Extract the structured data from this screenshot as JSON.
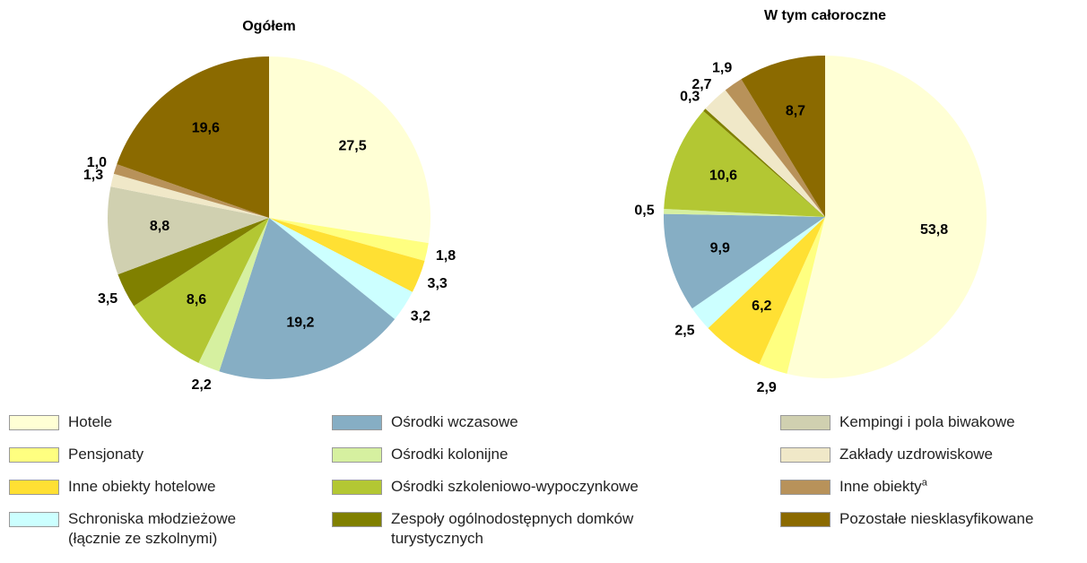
{
  "chart_data": [
    {
      "type": "pie",
      "title": "Ogółem",
      "values": [
        27.5,
        1.8,
        3.3,
        3.2,
        19.2,
        2.2,
        8.6,
        3.5,
        8.8,
        1.3,
        1.0,
        19.6
      ],
      "value_labels": [
        "27,5",
        "1,8",
        "3,3",
        "3,2",
        "19,2",
        "2,2",
        "8,6",
        "3,5",
        "8,8",
        "1,3",
        "1,0",
        "19,6"
      ],
      "colors": [
        "#ffffd5",
        "#ffff80",
        "#ffe033",
        "#ccffff",
        "#86aec4",
        "#d6f0a0",
        "#b3c733",
        "#808000",
        "#d0d0b0",
        "#f0e8c8",
        "#b8925a",
        "#8b6a00"
      ]
    },
    {
      "type": "pie",
      "title": "W tym całoroczne",
      "values": [
        53.8,
        2.9,
        6.2,
        2.5,
        9.9,
        0.5,
        10.6,
        0.3,
        2.7,
        1.9,
        8.7
      ],
      "value_labels": [
        "53,8",
        "2,9",
        "6,2",
        "2,5",
        "9,9",
        "0,5",
        "10,6",
        "0,3",
        "2,7",
        "1,9",
        "8,7"
      ],
      "colors": [
        "#ffffd5",
        "#ffff80",
        "#ffe033",
        "#ccffff",
        "#86aec4",
        "#d6f0a0",
        "#b3c733",
        "#808000",
        "#f0e8c8",
        "#b8925a",
        "#8b6a00"
      ]
    }
  ],
  "legend": [
    {
      "name": "Hotele",
      "color": "#ffffd5"
    },
    {
      "name": "Pensjonaty",
      "color": "#ffff80"
    },
    {
      "name": "Inne obiekty hotelowe",
      "color": "#ffe033"
    },
    {
      "name": "Schroniska młodzieżowe (łącznie ze szkolnymi)",
      "color": "#ccffff"
    },
    {
      "name": "Ośrodki wczasowe",
      "color": "#86aec4"
    },
    {
      "name": "Ośrodki kolonijne",
      "color": "#d6f0a0"
    },
    {
      "name": "Ośrodki szkoleniowo-wypoczynkowe",
      "color": "#b3c733"
    },
    {
      "name": "Zespoły ogólnodostępnych domków turystycznych",
      "color": "#808000"
    },
    {
      "name": "Kempingi i pola biwakowe",
      "color": "#d0d0b0"
    },
    {
      "name": "Zakłady uzdrowiskowe",
      "color": "#f0e8c8"
    },
    {
      "name": "Inne obiekty",
      "sup": "a",
      "color": "#b8925a"
    },
    {
      "name": "Pozostałe niesklasyfikowane",
      "color": "#8b6a00"
    }
  ]
}
